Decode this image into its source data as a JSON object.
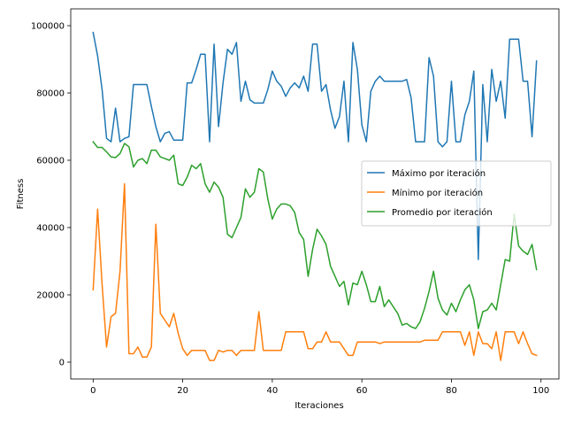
{
  "chart_data": {
    "type": "line",
    "title": "",
    "xlabel": "Iteraciones",
    "ylabel": "Fitness",
    "xlim": [
      -5,
      104
    ],
    "ylim": [
      -5000,
      105000
    ],
    "xticks": [
      0,
      20,
      40,
      60,
      80,
      100
    ],
    "yticks": [
      0,
      20000,
      40000,
      60000,
      80000,
      100000
    ],
    "xtick_labels": [
      "0",
      "20",
      "40",
      "60",
      "80",
      "100"
    ],
    "ytick_labels": [
      "0",
      "20000",
      "40000",
      "60000",
      "80000",
      "100000"
    ],
    "legend_position": "center-right",
    "x": [
      0,
      1,
      2,
      3,
      4,
      5,
      6,
      7,
      8,
      9,
      10,
      11,
      12,
      13,
      14,
      15,
      16,
      17,
      18,
      19,
      20,
      21,
      22,
      23,
      24,
      25,
      26,
      27,
      28,
      29,
      30,
      31,
      32,
      33,
      34,
      35,
      36,
      37,
      38,
      39,
      40,
      41,
      42,
      43,
      44,
      45,
      46,
      47,
      48,
      49,
      50,
      51,
      52,
      53,
      54,
      55,
      56,
      57,
      58,
      59,
      60,
      61,
      62,
      63,
      64,
      65,
      66,
      67,
      68,
      69,
      70,
      71,
      72,
      73,
      74,
      75,
      76,
      77,
      78,
      79,
      80,
      81,
      82,
      83,
      84,
      85,
      86,
      87,
      88,
      89,
      90,
      91,
      92,
      93,
      94,
      95,
      96,
      97,
      98,
      99
    ],
    "series": [
      {
        "name": "Máximo por iteración",
        "color": "#1f77b4",
        "values": [
          98000,
          91000,
          81000,
          66500,
          65500,
          75500,
          65500,
          66500,
          67000,
          82500,
          82500,
          82500,
          82500,
          76000,
          70000,
          65500,
          68000,
          68500,
          66000,
          66000,
          66000,
          83000,
          83000,
          87000,
          91500,
          91500,
          65500,
          94500,
          70000,
          83000,
          93000,
          91500,
          95000,
          77500,
          83500,
          78000,
          77000,
          77000,
          77000,
          81000,
          86500,
          83500,
          82000,
          79000,
          81500,
          83000,
          81500,
          85000,
          80500,
          94500,
          94500,
          80500,
          82500,
          75000,
          69500,
          73000,
          83500,
          65500,
          95000,
          87000,
          70500,
          65500,
          80500,
          83500,
          85000,
          83500,
          83500,
          83500,
          83500,
          83500,
          84000,
          78500,
          65500,
          65500,
          65500,
          90500,
          85000,
          65500,
          64000,
          65500,
          83500,
          65500,
          65500,
          73500,
          77500,
          86500,
          30500,
          82500,
          65500,
          87000,
          77500,
          83500,
          72500,
          96000,
          96000,
          96000,
          83500,
          83500,
          67000,
          89500
        ]
      },
      {
        "name": "Mínimo por iteración",
        "color": "#ff7f0e",
        "values": [
          21500,
          45500,
          23000,
          4500,
          13500,
          14500,
          27000,
          53000,
          2500,
          2500,
          4500,
          1500,
          1500,
          4500,
          41000,
          14500,
          12500,
          10500,
          14500,
          8500,
          4000,
          2000,
          3500,
          3500,
          3500,
          3500,
          500,
          500,
          3500,
          3000,
          3500,
          3500,
          2000,
          3500,
          3500,
          3500,
          3500,
          15000,
          3500,
          3500,
          3500,
          3500,
          3500,
          9000,
          9000,
          9000,
          9000,
          9000,
          4000,
          4000,
          6000,
          6000,
          9000,
          6000,
          6000,
          6000,
          4000,
          2000,
          2000,
          6000,
          6000,
          6000,
          6000,
          6000,
          5500,
          6000,
          6000,
          6000,
          6000,
          6000,
          6000,
          6000,
          6000,
          6000,
          6500,
          6500,
          6500,
          6500,
          9000,
          9000,
          9000,
          9000,
          9000,
          5000,
          9000,
          2000,
          9000,
          5500,
          5500,
          4000,
          9000,
          500,
          9000,
          9000,
          9000,
          5500,
          9000,
          5500,
          2500,
          2000
        ]
      },
      {
        "name": "Promedio por iteración",
        "color": "#2ca02c",
        "values": [
          65500,
          63800,
          63800,
          62500,
          61000,
          60800,
          62000,
          65000,
          64000,
          58000,
          60000,
          60500,
          59000,
          63000,
          63000,
          61000,
          60500,
          60000,
          61500,
          53000,
          52500,
          55000,
          58500,
          57500,
          59000,
          53000,
          50500,
          53500,
          52000,
          49000,
          38000,
          37000,
          40000,
          43000,
          51500,
          49000,
          50500,
          57500,
          56500,
          48500,
          42500,
          45500,
          47000,
          47000,
          46500,
          44500,
          38500,
          36500,
          25500,
          33500,
          39500,
          37500,
          35000,
          28500,
          25500,
          22500,
          24000,
          17000,
          23500,
          23000,
          27000,
          23000,
          18000,
          18000,
          22500,
          16500,
          18500,
          16500,
          14500,
          11000,
          11500,
          10500,
          10000,
          12000,
          16000,
          21000,
          27000,
          19000,
          15500,
          14000,
          17500,
          15000,
          18500,
          21500,
          23000,
          18500,
          10000,
          15000,
          15500,
          17500,
          15500,
          23000,
          30500,
          30000,
          44000,
          34500,
          33000,
          32000,
          35000,
          27500
        ]
      }
    ]
  }
}
